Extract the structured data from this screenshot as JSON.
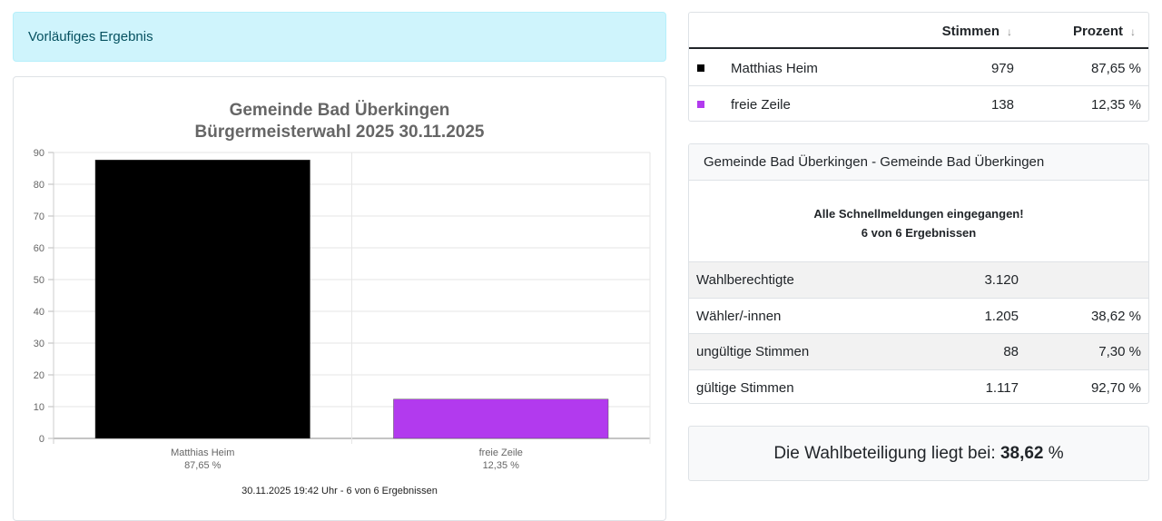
{
  "alert": {
    "text": "Vorläufiges Ergebnis"
  },
  "chart_data": {
    "type": "bar",
    "title": [
      "Gemeinde Bad Überkingen",
      "Bürgermeisterwahl 2025 30.11.2025"
    ],
    "categories": [
      "Matthias Heim",
      "freie Zeile"
    ],
    "category_sublabels": [
      "87,65 %",
      "12,35 %"
    ],
    "values": [
      87.65,
      12.35
    ],
    "colors": [
      "#000000",
      "#b23aee"
    ],
    "ylim": [
      0,
      90
    ],
    "yticks": [
      "0",
      "10",
      "20",
      "30",
      "40",
      "50",
      "60",
      "70",
      "80",
      "90"
    ],
    "grid": true,
    "xlabel": "",
    "ylabel": ""
  },
  "chart_footer": "30.11.2025 19:42 Uhr - 6 von 6 Ergebnissen",
  "results": {
    "header": {
      "stimmen": "Stimmen",
      "prozent": "Prozent",
      "sort_icon": "↓"
    },
    "rows": [
      {
        "color": "#000000",
        "name": "Matthias Heim",
        "votes": "979",
        "percent": "87,65 %"
      },
      {
        "color": "#b23aee",
        "name": "freie Zeile",
        "votes": "138",
        "percent": "12,35 %"
      }
    ]
  },
  "detail": {
    "title": "Gemeinde Bad Überkingen - Gemeinde Bad Überkingen",
    "status_line1": "Alle Schnellmeldungen eingegangen!",
    "status_line2": "6 von 6 Ergebnissen",
    "rows": [
      {
        "label": "Wahlberechtigte",
        "value": "3.120",
        "percent": ""
      },
      {
        "label": "Wähler/-innen",
        "value": "1.205",
        "percent": "38,62 %"
      },
      {
        "label": "ungültige Stimmen",
        "value": "88",
        "percent": "7,30 %"
      },
      {
        "label": "gültige Stimmen",
        "value": "1.117",
        "percent": "92,70 %"
      }
    ]
  },
  "turnout": {
    "prefix": "Die Wahlbeteiligung liegt bei:",
    "value": "38,62",
    "suffix": "%"
  }
}
